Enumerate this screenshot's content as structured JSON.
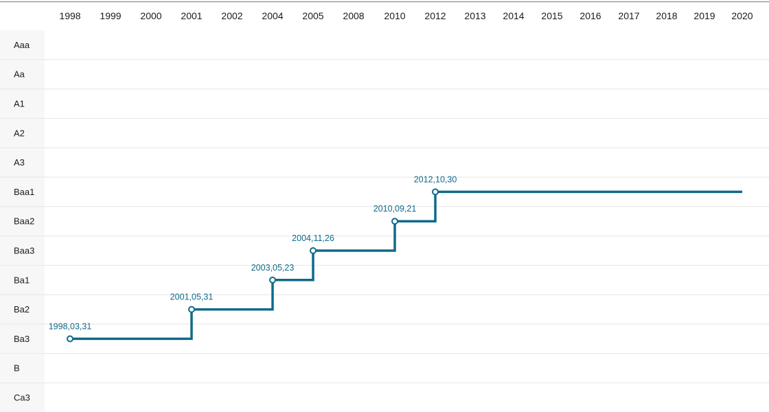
{
  "colors": {
    "series": "#0e6a8a",
    "grid": "#e6e6e6",
    "top_border": "#9a9a9a",
    "label_column_bg": "#f7f7f7",
    "text": "#1a1a1a"
  },
  "chart_data": {
    "type": "line",
    "step": "after",
    "x_categories": [
      "1998",
      "1999",
      "2000",
      "2001",
      "2002",
      "2004",
      "2005",
      "2008",
      "2010",
      "2012",
      "2013",
      "2014",
      "2015",
      "2016",
      "2017",
      "2018",
      "2019",
      "2020"
    ],
    "y_categories": [
      "Aaa",
      "Aa",
      "A1",
      "A2",
      "A3",
      "Baa1",
      "Baa2",
      "Baa3",
      "Ba1",
      "Ba2",
      "Ba3",
      "B",
      "Ca3"
    ],
    "x_axis_position": "top",
    "grid": true,
    "points": [
      {
        "label": "1998,03,31",
        "x": "1998",
        "y": "Ba3"
      },
      {
        "label": "2001,05,31",
        "x": "2001",
        "y": "Ba2"
      },
      {
        "label": "2003,05,23",
        "x": "2004",
        "y": "Ba1"
      },
      {
        "label": "2004,11,26",
        "x": "2005",
        "y": "Baa3"
      },
      {
        "label": "2010,09,21",
        "x": "2010",
        "y": "Baa2"
      },
      {
        "label": "2012,10,30",
        "x": "2012",
        "y": "Baa1"
      }
    ],
    "line_end": {
      "x": "2020",
      "y": "Baa1"
    }
  }
}
